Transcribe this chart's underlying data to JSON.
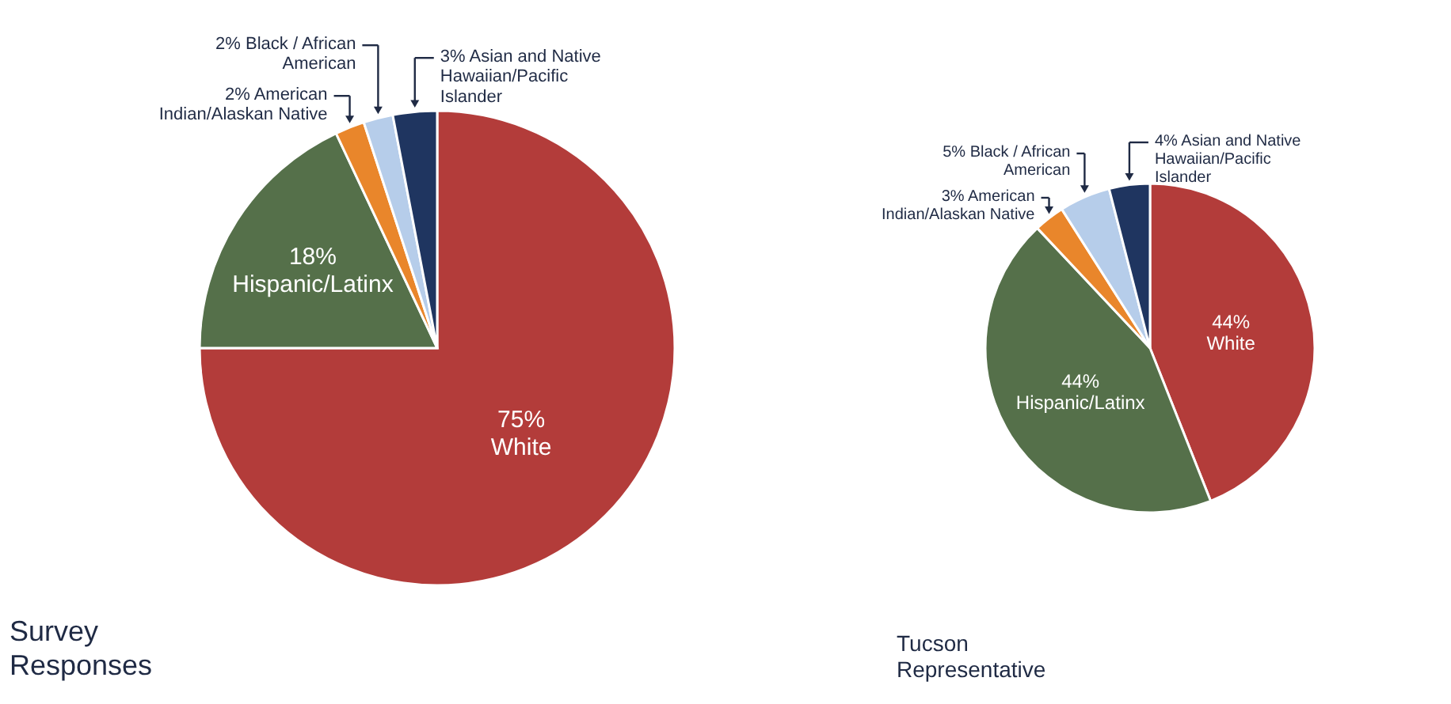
{
  "chart_data": [
    {
      "type": "pie",
      "title": "Survey Responses",
      "categories": [
        "White",
        "Hispanic/Latinx",
        "American Indian/Alaskan Native",
        "Black / African American",
        "Asian and Native Hawaiian/Pacific Islander"
      ],
      "values": [
        75,
        18,
        2,
        2,
        3
      ],
      "colors": [
        "#b33c3a",
        "#55704a",
        "#e9862b",
        "#b6cdea",
        "#1f3560"
      ],
      "value_labels": [
        "75%",
        "18%",
        "2%",
        "2%",
        "3%"
      ]
    },
    {
      "type": "pie",
      "title": "Tucson Representative",
      "categories": [
        "White",
        "Hispanic/Latinx",
        "American Indian/Alaskan Native",
        "Black / African American",
        "Asian and Native Hawaiian/Pacific Islander"
      ],
      "values": [
        44,
        44,
        3,
        5,
        4
      ],
      "colors": [
        "#b33c3a",
        "#55704a",
        "#e9862b",
        "#b6cdea",
        "#1f3560"
      ],
      "value_labels": [
        "44%",
        "44%",
        "3%",
        "5%",
        "4%"
      ]
    }
  ]
}
